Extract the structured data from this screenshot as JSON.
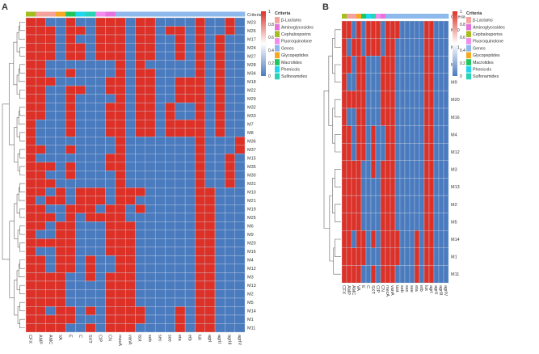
{
  "colors": {
    "high": "#DD3127",
    "mid": "#FFFFFF",
    "low": "#4A7BBF",
    "grid": "#C9D3E3"
  },
  "legend": {
    "title": "Criteria",
    "items": [
      {
        "label": "β-Lactams",
        "color": "#F4A29C"
      },
      {
        "label": "Aminoglycosides",
        "color": "#E572DD"
      },
      {
        "label": "Cephalosporins",
        "color": "#A6BD1F"
      },
      {
        "label": "Fluoroquinolone",
        "color": "#F08CEB"
      },
      {
        "label": "Genes",
        "color": "#8EB9EC"
      },
      {
        "label": "Glycopeptides",
        "color": "#F4A824"
      },
      {
        "label": "Macrolides",
        "color": "#1FC75B"
      },
      {
        "label": "Phenicols",
        "color": "#20D6EE"
      },
      {
        "label": "Sulfonamides",
        "color": "#27D3B6"
      }
    ]
  },
  "colorbar": {
    "ticks": [
      "1",
      "0.8",
      "0.6",
      "0.4",
      "0.2",
      "0"
    ],
    "range": [
      0,
      1
    ]
  },
  "chart_data": [
    {
      "type": "heatmap",
      "panel": "A",
      "annotation_label": "Criteria",
      "columns": [
        "CFX",
        "AMP",
        "AMC",
        "VA",
        "E",
        "C",
        "SXT",
        "CIP",
        "CN",
        "mecA",
        "vanA",
        "tsst",
        "seb",
        "sec",
        "see",
        "eta",
        "etb",
        "luk",
        "agrI",
        "agrII",
        "agrIII",
        "agrIV"
      ],
      "column_criteria": [
        "Cephalosporins",
        "β-Lactams",
        "β-Lactams",
        "Glycopeptides",
        "Macrolides",
        "Phenicols",
        "Sulfonamides",
        "Fluoroquinolone",
        "Aminoglycosides",
        "Genes",
        "Genes",
        "Genes",
        "Genes",
        "Genes",
        "Genes",
        "Genes",
        "Genes",
        "Genes",
        "Genes",
        "Genes",
        "Genes",
        "Genes"
      ],
      "rows": [
        "M23",
        "M26",
        "M17",
        "M24",
        "M27",
        "M28",
        "M34",
        "M18",
        "M22",
        "M29",
        "M32",
        "M33",
        "M7",
        "M8",
        "M36",
        "M37",
        "M15",
        "M35",
        "M30",
        "M31",
        "M10",
        "M21",
        "M19",
        "M25",
        "M6",
        "M9",
        "M20",
        "M16",
        "M4",
        "M12",
        "M3",
        "M13",
        "M2",
        "M5",
        "M14",
        "M1",
        "M11"
      ],
      "values": [
        [
          1,
          1,
          0,
          0,
          1,
          0,
          0,
          1,
          1,
          1,
          0,
          1,
          1,
          0,
          0,
          0,
          0,
          1,
          0,
          0,
          1,
          0
        ],
        [
          1,
          1,
          1,
          0,
          1,
          1,
          0,
          1,
          1,
          1,
          0,
          1,
          1,
          0,
          1,
          1,
          0,
          1,
          0,
          0,
          1,
          0
        ],
        [
          1,
          1,
          1,
          0,
          1,
          0,
          0,
          1,
          1,
          1,
          0,
          1,
          1,
          0,
          0,
          1,
          0,
          1,
          0,
          1,
          0,
          0
        ],
        [
          1,
          1,
          1,
          0,
          1,
          1,
          0,
          1,
          1,
          1,
          0,
          1,
          1,
          0,
          0,
          1,
          0,
          1,
          0,
          1,
          0,
          0
        ],
        [
          1,
          1,
          1,
          0,
          1,
          1,
          0,
          1,
          1,
          1,
          0,
          1,
          1,
          0,
          0,
          1,
          0,
          1,
          0,
          1,
          0,
          0
        ],
        [
          1,
          1,
          0,
          0,
          0,
          0,
          0,
          0,
          0,
          1,
          0,
          1,
          0,
          0,
          0,
          0,
          0,
          1,
          0,
          1,
          0,
          0
        ],
        [
          1,
          1,
          0,
          0,
          1,
          0,
          0,
          0,
          0,
          1,
          0,
          1,
          1,
          0,
          0,
          0,
          0,
          1,
          0,
          1,
          0,
          0
        ],
        [
          1,
          1,
          1,
          0,
          0,
          0,
          0,
          0,
          1,
          1,
          0,
          1,
          1,
          0,
          0,
          1,
          1,
          1,
          0,
          1,
          0,
          0
        ],
        [
          1,
          1,
          0,
          0,
          1,
          1,
          0,
          0,
          1,
          1,
          0,
          1,
          1,
          0,
          0,
          1,
          1,
          1,
          0,
          1,
          0,
          0
        ],
        [
          1,
          1,
          0,
          0,
          1,
          0,
          0,
          0,
          0,
          1,
          0,
          1,
          1,
          0,
          0,
          1,
          1,
          1,
          0,
          1,
          0,
          0
        ],
        [
          1,
          1,
          0,
          0,
          1,
          0,
          0,
          0,
          1,
          1,
          0,
          1,
          1,
          0,
          1,
          0,
          0,
          1,
          0,
          1,
          0,
          0
        ],
        [
          1,
          1,
          0,
          0,
          1,
          0,
          0,
          0,
          1,
          1,
          0,
          1,
          1,
          0,
          1,
          0,
          0,
          1,
          0,
          1,
          0,
          0
        ],
        [
          1,
          0,
          0,
          0,
          1,
          0,
          0,
          0,
          1,
          1,
          0,
          1,
          1,
          0,
          1,
          1,
          1,
          1,
          0,
          1,
          0,
          0
        ],
        [
          1,
          0,
          0,
          0,
          1,
          0,
          0,
          0,
          1,
          1,
          0,
          1,
          1,
          0,
          1,
          1,
          1,
          1,
          0,
          1,
          0,
          0
        ],
        [
          1,
          0,
          0,
          0,
          0,
          0,
          0,
          0,
          0,
          1,
          0,
          0,
          0,
          0,
          0,
          0,
          0,
          1,
          0,
          0,
          0,
          1
        ],
        [
          1,
          1,
          0,
          0,
          1,
          0,
          0,
          0,
          0,
          1,
          0,
          0,
          0,
          0,
          0,
          0,
          0,
          1,
          0,
          0,
          0,
          1
        ],
        [
          1,
          0,
          0,
          0,
          0,
          0,
          0,
          0,
          1,
          1,
          0,
          0,
          0,
          0,
          0,
          0,
          0,
          1,
          0,
          0,
          1,
          0
        ],
        [
          1,
          1,
          1,
          0,
          1,
          0,
          0,
          0,
          1,
          1,
          0,
          0,
          0,
          0,
          0,
          0,
          0,
          1,
          0,
          0,
          1,
          0
        ],
        [
          1,
          1,
          0,
          0,
          1,
          0,
          0,
          0,
          0,
          1,
          0,
          0,
          0,
          0,
          0,
          0,
          0,
          1,
          0,
          0,
          1,
          0
        ],
        [
          1,
          1,
          1,
          0,
          0,
          0,
          0,
          0,
          0,
          1,
          0,
          0,
          0,
          0,
          0,
          0,
          0,
          1,
          0,
          0,
          1,
          0
        ],
        [
          1,
          1,
          0,
          1,
          0,
          1,
          1,
          1,
          0,
          1,
          1,
          1,
          0,
          0,
          0,
          0,
          0,
          1,
          1,
          0,
          0,
          0
        ],
        [
          1,
          0,
          1,
          1,
          0,
          1,
          1,
          1,
          0,
          1,
          1,
          0,
          0,
          0,
          0,
          0,
          0,
          1,
          1,
          0,
          0,
          0
        ],
        [
          1,
          1,
          0,
          0,
          1,
          1,
          1,
          0,
          1,
          1,
          0,
          1,
          0,
          0,
          0,
          0,
          0,
          1,
          1,
          0,
          0,
          0
        ],
        [
          1,
          1,
          1,
          0,
          1,
          0,
          1,
          1,
          1,
          1,
          0,
          0,
          0,
          0,
          0,
          0,
          0,
          1,
          1,
          0,
          0,
          0
        ],
        [
          1,
          1,
          0,
          1,
          1,
          0,
          0,
          0,
          1,
          1,
          1,
          0,
          0,
          0,
          0,
          0,
          0,
          1,
          1,
          0,
          0,
          0
        ],
        [
          1,
          0,
          0,
          1,
          1,
          0,
          0,
          0,
          1,
          1,
          1,
          0,
          0,
          0,
          0,
          0,
          0,
          1,
          1,
          0,
          0,
          0
        ],
        [
          1,
          1,
          1,
          1,
          1,
          0,
          0,
          0,
          1,
          1,
          1,
          0,
          0,
          0,
          0,
          0,
          0,
          1,
          1,
          0,
          0,
          0
        ],
        [
          1,
          0,
          0,
          1,
          1,
          0,
          0,
          0,
          1,
          1,
          1,
          0,
          0,
          0,
          0,
          0,
          0,
          1,
          1,
          0,
          0,
          0
        ],
        [
          1,
          1,
          0,
          1,
          1,
          0,
          1,
          0,
          0,
          1,
          1,
          0,
          0,
          0,
          0,
          0,
          0,
          1,
          1,
          0,
          0,
          0
        ],
        [
          1,
          1,
          0,
          1,
          1,
          0,
          1,
          0,
          0,
          1,
          1,
          0,
          0,
          0,
          0,
          0,
          0,
          1,
          1,
          0,
          0,
          0
        ],
        [
          1,
          1,
          1,
          1,
          0,
          0,
          1,
          0,
          1,
          1,
          1,
          0,
          0,
          0,
          0,
          0,
          0,
          1,
          1,
          0,
          0,
          0
        ],
        [
          1,
          1,
          1,
          1,
          0,
          0,
          0,
          0,
          1,
          1,
          1,
          0,
          0,
          0,
          0,
          0,
          0,
          1,
          1,
          0,
          0,
          0
        ],
        [
          1,
          1,
          1,
          1,
          0,
          0,
          0,
          0,
          1,
          1,
          1,
          0,
          0,
          0,
          0,
          0,
          0,
          1,
          1,
          0,
          0,
          0
        ],
        [
          1,
          1,
          1,
          1,
          0,
          0,
          0,
          0,
          1,
          1,
          1,
          0,
          0,
          0,
          0,
          0,
          0,
          1,
          1,
          0,
          0,
          0
        ],
        [
          1,
          1,
          0,
          1,
          1,
          0,
          1,
          0,
          1,
          1,
          1,
          1,
          0,
          0,
          0,
          1,
          0,
          1,
          1,
          0,
          0,
          0
        ],
        [
          1,
          1,
          1,
          1,
          1,
          0,
          0,
          0,
          1,
          1,
          1,
          1,
          0,
          0,
          0,
          1,
          0,
          1,
          1,
          0,
          0,
          0
        ],
        [
          1,
          1,
          1,
          1,
          0,
          0,
          1,
          0,
          1,
          1,
          1,
          0,
          0,
          0,
          0,
          1,
          0,
          1,
          1,
          0,
          0,
          0
        ]
      ]
    },
    {
      "type": "heatmap",
      "panel": "B",
      "annotation_label": "Criteria",
      "columns": [
        "CFX",
        "AMP",
        "AMC",
        "VA",
        "E",
        "C",
        "SXT",
        "CIP",
        "CN",
        "mecA",
        "vanA",
        "tsst",
        "seb",
        "sec",
        "see",
        "eta",
        "etb",
        "luk",
        "agrI",
        "agrII",
        "agrIII",
        "agrIV"
      ],
      "column_criteria": [
        "Cephalosporins",
        "β-Lactams",
        "β-Lactams",
        "Glycopeptides",
        "Macrolides",
        "Phenicols",
        "Sulfonamides",
        "Fluoroquinolone",
        "Aminoglycosides",
        "Genes",
        "Genes",
        "Genes",
        "Genes",
        "Genes",
        "Genes",
        "Genes",
        "Genes",
        "Genes",
        "Genes",
        "Genes",
        "Genes",
        "Genes"
      ],
      "rows": [
        "M10",
        "M21",
        "M6",
        "M9",
        "M20",
        "M16",
        "M4",
        "M12",
        "M3",
        "M13",
        "M2",
        "M5",
        "M14",
        "M1",
        "M11"
      ],
      "values": [
        [
          1,
          1,
          0,
          1,
          0,
          1,
          1,
          1,
          0,
          1,
          1,
          1,
          0,
          0,
          0,
          0,
          0,
          1,
          1,
          0,
          0,
          0
        ],
        [
          1,
          0,
          1,
          1,
          0,
          1,
          1,
          1,
          0,
          1,
          1,
          0,
          0,
          0,
          0,
          0,
          0,
          1,
          1,
          0,
          0,
          0
        ],
        [
          1,
          1,
          0,
          1,
          1,
          0,
          0,
          0,
          1,
          1,
          1,
          0,
          0,
          0,
          0,
          0,
          0,
          1,
          1,
          0,
          0,
          0
        ],
        [
          1,
          0,
          0,
          1,
          1,
          0,
          0,
          0,
          1,
          1,
          1,
          0,
          0,
          0,
          0,
          0,
          0,
          1,
          1,
          0,
          0,
          0
        ],
        [
          1,
          1,
          1,
          1,
          1,
          0,
          0,
          0,
          1,
          1,
          1,
          0,
          0,
          0,
          0,
          0,
          0,
          1,
          1,
          0,
          0,
          0
        ],
        [
          1,
          0,
          0,
          1,
          1,
          0,
          0,
          0,
          1,
          1,
          1,
          0,
          0,
          0,
          0,
          0,
          0,
          1,
          1,
          0,
          0,
          0
        ],
        [
          1,
          1,
          0,
          1,
          1,
          0,
          1,
          0,
          0,
          1,
          1,
          0,
          0,
          0,
          0,
          0,
          0,
          1,
          1,
          0,
          0,
          0
        ],
        [
          1,
          1,
          0,
          1,
          1,
          0,
          1,
          0,
          0,
          1,
          1,
          0,
          0,
          0,
          0,
          0,
          0,
          1,
          1,
          0,
          0,
          0
        ],
        [
          1,
          1,
          1,
          1,
          0,
          0,
          1,
          0,
          1,
          1,
          1,
          0,
          0,
          0,
          0,
          0,
          0,
          1,
          1,
          0,
          0,
          0
        ],
        [
          1,
          1,
          1,
          1,
          0,
          0,
          0,
          0,
          1,
          1,
          1,
          0,
          0,
          0,
          0,
          0,
          0,
          1,
          1,
          0,
          0,
          0
        ],
        [
          1,
          1,
          1,
          1,
          0,
          0,
          0,
          0,
          1,
          1,
          1,
          0,
          0,
          0,
          0,
          0,
          0,
          1,
          1,
          0,
          0,
          0
        ],
        [
          1,
          1,
          1,
          1,
          0,
          0,
          0,
          0,
          1,
          1,
          1,
          0,
          0,
          0,
          0,
          0,
          0,
          1,
          1,
          0,
          0,
          0
        ],
        [
          1,
          1,
          0,
          1,
          1,
          0,
          1,
          0,
          1,
          1,
          1,
          1,
          0,
          0,
          0,
          1,
          0,
          1,
          1,
          0,
          0,
          0
        ],
        [
          1,
          1,
          1,
          1,
          1,
          0,
          0,
          0,
          1,
          1,
          1,
          1,
          0,
          0,
          0,
          1,
          0,
          1,
          1,
          0,
          0,
          0
        ],
        [
          1,
          1,
          1,
          1,
          0,
          0,
          1,
          0,
          1,
          1,
          1,
          0,
          0,
          0,
          0,
          1,
          0,
          1,
          1,
          0,
          0,
          0
        ]
      ]
    }
  ]
}
